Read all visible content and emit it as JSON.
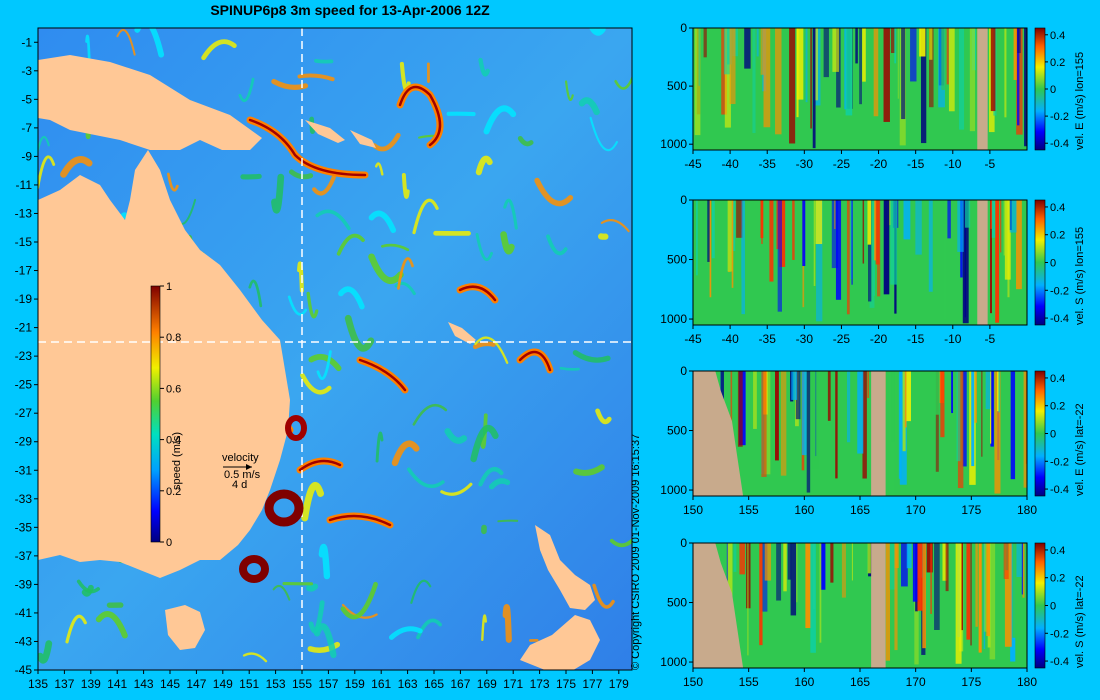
{
  "title": "SPINUP6p8 3m speed for 13-Apr-2006 12Z",
  "copyright": "© Copyright CSIRO 2009   01-Nov-2009 16:15:37",
  "chart_data": [
    {
      "type": "heatmap",
      "name": "map",
      "title": "SPINUP6p8 3m speed for 13-Apr-2006 12Z",
      "x_ticks": [
        "135",
        "137",
        "139",
        "141",
        "143",
        "145",
        "147",
        "149",
        "151",
        "153",
        "155",
        "157",
        "159",
        "161",
        "163",
        "165",
        "167",
        "169",
        "171",
        "173",
        "175",
        "177",
        "179"
      ],
      "y_ticks": [
        "-1",
        "-3",
        "-5",
        "-7",
        "-9",
        "-11",
        "-13",
        "-15",
        "-17",
        "-19",
        "-21",
        "-23",
        "-25",
        "-27",
        "-29",
        "-31",
        "-33",
        "-35",
        "-37",
        "-39",
        "-41",
        "-43",
        "-45"
      ],
      "xlim": [
        135,
        180
      ],
      "ylim": [
        -45,
        0
      ],
      "section_lines": {
        "lon": 155,
        "lat": -22
      },
      "colorbar": {
        "label": "speed (m/s)",
        "ticks": [
          "1",
          "0.8",
          "0.6",
          "0.4",
          "0.2",
          "0"
        ],
        "range": [
          0,
          1
        ]
      },
      "velocity_key": {
        "label": "velocity",
        "scale": "0.5 m/s",
        "time": "4 d"
      }
    },
    {
      "type": "heatmap",
      "name": "panel-1",
      "x_ticks": [
        "-45",
        "-40",
        "-35",
        "-30",
        "-25",
        "-20",
        "-15",
        "-10",
        "-5"
      ],
      "y_ticks": [
        "0",
        "500",
        "1000"
      ],
      "xlim": [
        -45,
        0
      ],
      "ylim": [
        1050,
        0
      ],
      "colorbar": {
        "label": "vel. E (m/s) lon=155",
        "ticks": [
          "0.4",
          "0.2",
          "0",
          "-0.2",
          "-0.4"
        ],
        "range": [
          -0.45,
          0.45
        ]
      }
    },
    {
      "type": "heatmap",
      "name": "panel-2",
      "x_ticks": [
        "-45",
        "-40",
        "-35",
        "-30",
        "-25",
        "-20",
        "-15",
        "-10",
        "-5"
      ],
      "y_ticks": [
        "0",
        "500",
        "1000"
      ],
      "xlim": [
        -45,
        0
      ],
      "ylim": [
        1050,
        0
      ],
      "colorbar": {
        "label": "vel. S (m/s) lon=155",
        "ticks": [
          "0.4",
          "0.2",
          "0",
          "-0.2",
          "-0.4"
        ],
        "range": [
          -0.45,
          0.45
        ]
      }
    },
    {
      "type": "heatmap",
      "name": "panel-3",
      "x_ticks": [
        "150",
        "155",
        "160",
        "165",
        "170",
        "175",
        "180"
      ],
      "y_ticks": [
        "0",
        "500",
        "1000"
      ],
      "xlim": [
        150,
        180
      ],
      "ylim": [
        1050,
        0
      ],
      "colorbar": {
        "label": "vel. E (m/s) lat=-22",
        "ticks": [
          "0.4",
          "0.2",
          "0",
          "-0.2",
          "-0.4"
        ],
        "range": [
          -0.45,
          0.45
        ]
      }
    },
    {
      "type": "heatmap",
      "name": "panel-4",
      "x_ticks": [
        "150",
        "155",
        "160",
        "165",
        "170",
        "175",
        "180"
      ],
      "y_ticks": [
        "0",
        "500",
        "1000"
      ],
      "xlim": [
        150,
        180
      ],
      "ylim": [
        1050,
        0
      ],
      "colorbar": {
        "label": "vel. S (m/s) lat=-22",
        "ticks": [
          "0.4",
          "0.2",
          "0",
          "-0.2",
          "-0.4"
        ],
        "range": [
          -0.45,
          0.45
        ]
      }
    }
  ]
}
